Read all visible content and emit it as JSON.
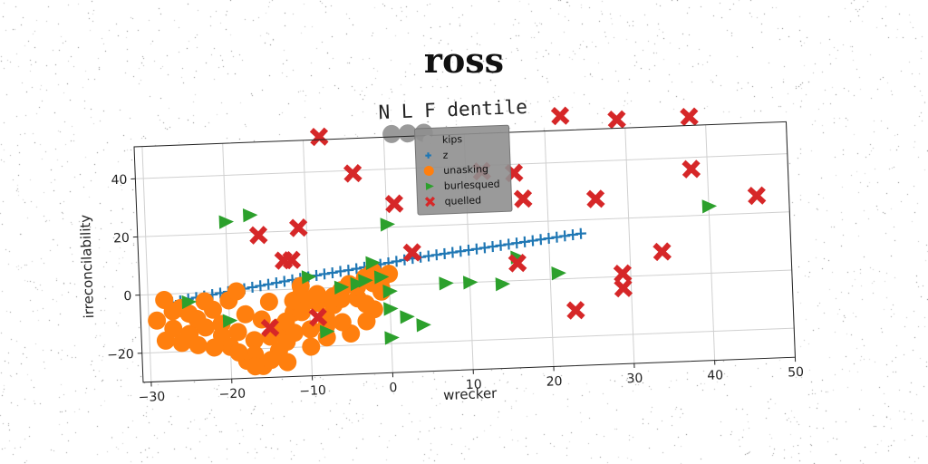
{
  "suptitle": "ross",
  "chart_data": {
    "type": "scatter",
    "title": "N L F dentile",
    "xlabel": "wrecker",
    "ylabel": "irreconcilability",
    "xlim": [
      -31,
      50
    ],
    "ylim": [
      -30,
      51
    ],
    "xticks": [
      -30,
      -20,
      -10,
      0,
      10,
      20,
      30,
      40,
      50
    ],
    "yticks": [
      -20,
      0,
      20,
      40
    ],
    "grid": true,
    "legend_position": "upper-center",
    "series": [
      {
        "name": "kips",
        "marker": "circle",
        "color": "#9a9a9a",
        "points": [
          [
            1,
            52
          ],
          [
            3,
            52
          ],
          [
            5,
            52
          ]
        ]
      },
      {
        "name": "z",
        "marker": "plus",
        "color": "#1f77b4",
        "points": [
          [
            -27,
            -3
          ],
          [
            -26,
            -2.5
          ],
          [
            -25,
            -2
          ],
          [
            -24,
            -1.6
          ],
          [
            -23,
            -1.2
          ],
          [
            -22,
            -0.8
          ],
          [
            -21,
            -0.4
          ],
          [
            -20,
            0
          ],
          [
            -19,
            0.4
          ],
          [
            -18,
            0.8
          ],
          [
            -17,
            1.2
          ],
          [
            -16,
            1.6
          ],
          [
            -15,
            2
          ],
          [
            -14,
            2.4
          ],
          [
            -13,
            2.8
          ],
          [
            -12,
            3.2
          ],
          [
            -11,
            3.6
          ],
          [
            -10,
            4
          ],
          [
            -9,
            4.4
          ],
          [
            -8,
            4.8
          ],
          [
            -7,
            5.1
          ],
          [
            -6,
            5.5
          ],
          [
            -5,
            5.8
          ],
          [
            -4,
            6.2
          ],
          [
            -3,
            6.6
          ],
          [
            -2,
            7
          ],
          [
            -1,
            7.4
          ],
          [
            0,
            7.8
          ],
          [
            1,
            8.2
          ],
          [
            2,
            8.6
          ],
          [
            3,
            9
          ],
          [
            4,
            9.3
          ],
          [
            5,
            9.6
          ],
          [
            6,
            9.9
          ],
          [
            7,
            10.2
          ],
          [
            8,
            10.5
          ],
          [
            9,
            10.8
          ],
          [
            10,
            11.1
          ],
          [
            11,
            11.4
          ],
          [
            12,
            11.7
          ],
          [
            13,
            12
          ],
          [
            14,
            12.3
          ],
          [
            15,
            12.6
          ],
          [
            16,
            12.9
          ],
          [
            17,
            13.2
          ],
          [
            18,
            13.5
          ],
          [
            19,
            13.8
          ],
          [
            20,
            14.1
          ],
          [
            21,
            14.4
          ],
          [
            22,
            14.7
          ],
          [
            23,
            15
          ],
          [
            24,
            15.3
          ]
        ]
      },
      {
        "name": "unasking",
        "marker": "circle",
        "color": "#ff7f0e",
        "points": [
          [
            -28,
            -2
          ],
          [
            -29,
            -9
          ],
          [
            -27,
            -12
          ],
          [
            -28,
            -16
          ],
          [
            -26,
            -5
          ],
          [
            -25,
            -14
          ],
          [
            -24,
            -9
          ],
          [
            -23,
            -12
          ],
          [
            -22,
            -6
          ],
          [
            -21,
            -15
          ],
          [
            -20,
            -19
          ],
          [
            -20,
            -3
          ],
          [
            -19,
            0
          ],
          [
            -18,
            -8
          ],
          [
            -17,
            -17
          ],
          [
            -17,
            -22
          ],
          [
            -16,
            -10
          ],
          [
            -15,
            -4
          ],
          [
            -14,
            -13
          ],
          [
            -13,
            -18
          ],
          [
            -12,
            -8
          ],
          [
            -11,
            -2
          ],
          [
            -10,
            -14
          ],
          [
            -9,
            -5
          ],
          [
            -8,
            -10
          ],
          [
            -7,
            -3
          ],
          [
            -6,
            -1
          ],
          [
            -5,
            1
          ],
          [
            -4,
            -4
          ],
          [
            -3,
            3
          ],
          [
            -2,
            5
          ],
          [
            -1,
            2
          ],
          [
            0,
            4
          ],
          [
            -1,
            -2
          ],
          [
            -2,
            -8
          ],
          [
            -3,
            -12
          ],
          [
            -5,
            -16
          ],
          [
            -6,
            -12
          ],
          [
            -8,
            -17
          ],
          [
            -10,
            -20
          ],
          [
            -11,
            -8
          ],
          [
            -9,
            -2
          ],
          [
            -12,
            -4
          ],
          [
            -13,
            -11
          ],
          [
            -14,
            -21
          ],
          [
            -15,
            -16
          ],
          [
            -16,
            -26
          ],
          [
            -18,
            -24
          ],
          [
            -19,
            -14
          ],
          [
            -21,
            -11
          ],
          [
            -22,
            -19
          ],
          [
            -23,
            -3
          ],
          [
            -24,
            -18
          ],
          [
            -25,
            -7
          ],
          [
            -26,
            -17
          ],
          [
            -27,
            -6
          ],
          [
            -7,
            -6
          ],
          [
            -4,
            0
          ],
          [
            -3,
            -6
          ],
          [
            -2,
            1
          ],
          [
            -11,
            1
          ],
          [
            -10,
            -4
          ],
          [
            -12,
            -15
          ],
          [
            -13,
            -25
          ],
          [
            -15,
            -24
          ],
          [
            -17,
            -26
          ],
          [
            -19,
            -21
          ],
          [
            -8,
            -13
          ],
          [
            -6,
            -4
          ],
          [
            -1,
            -1
          ]
        ]
      },
      {
        "name": "burlesqued",
        "marker": "triangle-right",
        "color": "#2ca02c",
        "points": [
          [
            -20,
            24
          ],
          [
            -17,
            26
          ],
          [
            0,
            21
          ],
          [
            -25,
            -3
          ],
          [
            -20,
            -10
          ],
          [
            -8,
            -15
          ],
          [
            -2,
            8
          ],
          [
            -4,
            1
          ],
          [
            -3,
            2
          ],
          [
            -1,
            3
          ],
          [
            0,
            -2
          ],
          [
            0,
            -8
          ],
          [
            2,
            -11
          ],
          [
            4,
            -14
          ],
          [
            0,
            -18
          ],
          [
            7,
            0
          ],
          [
            10,
            0
          ],
          [
            14,
            -1
          ],
          [
            16,
            8
          ],
          [
            21,
            2
          ],
          [
            40,
            23
          ],
          [
            -6,
            0
          ],
          [
            -10,
            4
          ]
        ]
      },
      {
        "name": "quelled",
        "marker": "x",
        "color": "#d62728",
        "points": [
          [
            -8,
            52
          ],
          [
            -4,
            39
          ],
          [
            -16,
            19
          ],
          [
            -11,
            21
          ],
          [
            -13,
            10
          ],
          [
            -12,
            10
          ],
          [
            -15,
            -13
          ],
          [
            -9,
            -10
          ],
          [
            1,
            28
          ],
          [
            3,
            11
          ],
          [
            16,
            37
          ],
          [
            17,
            28
          ],
          [
            22,
            56
          ],
          [
            26,
            27
          ],
          [
            29,
            54
          ],
          [
            38,
            54
          ],
          [
            38,
            36
          ],
          [
            46,
            26
          ],
          [
            34,
            8
          ],
          [
            29,
            1
          ],
          [
            29,
            -4
          ],
          [
            23,
            -11
          ],
          [
            16,
            6
          ],
          [
            12,
            38
          ]
        ]
      }
    ]
  }
}
